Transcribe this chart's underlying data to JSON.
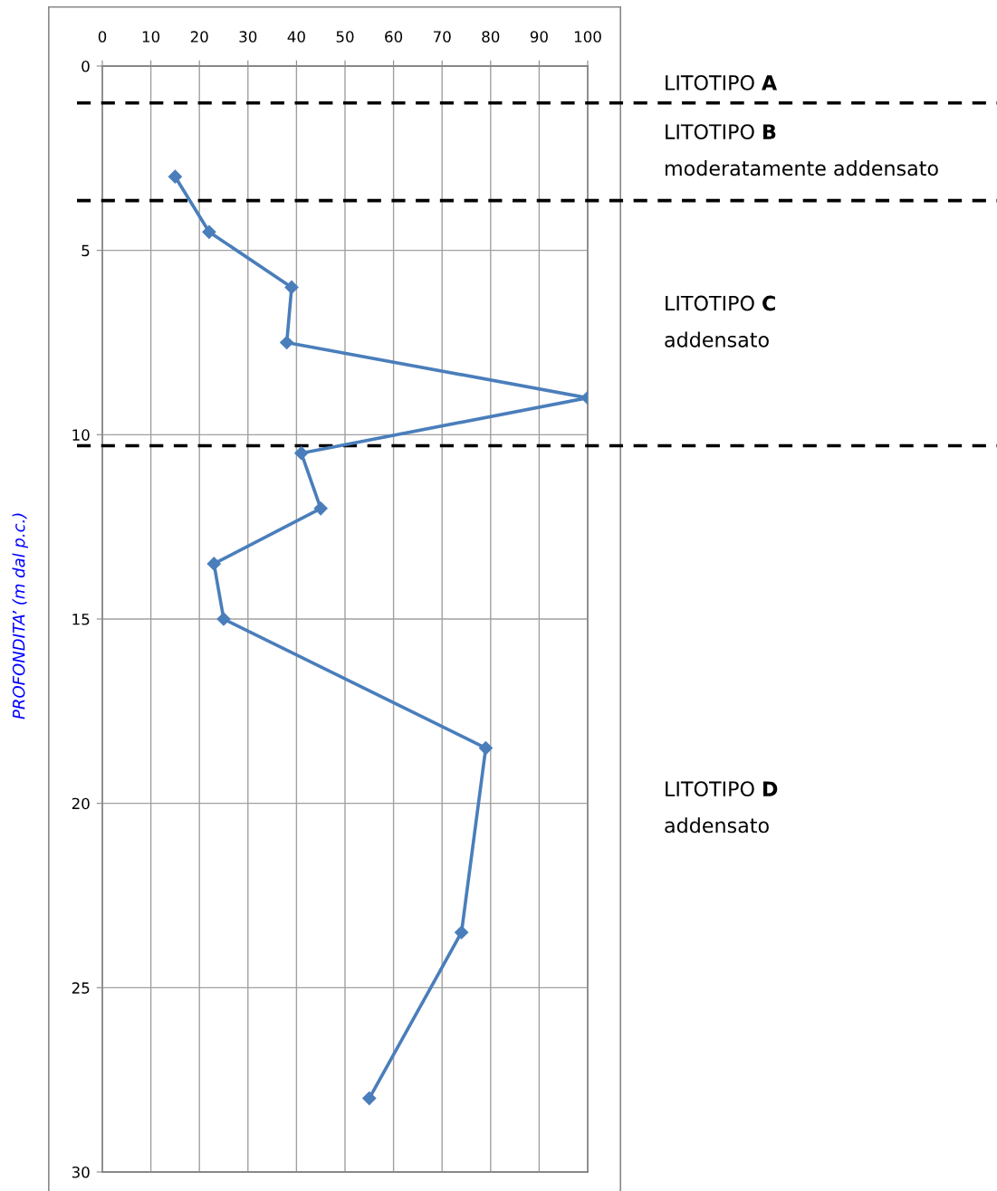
{
  "chart_data": {
    "type": "line",
    "ylabel": "PROFONDITA’ (m dal p.c.)",
    "series": [
      {
        "color": "#4a7ebb",
        "x": [
          15,
          22,
          39,
          38,
          100,
          41,
          45,
          23,
          25,
          79,
          74,
          55
        ],
        "values": [
          3,
          4.5,
          6,
          7.5,
          9,
          10.5,
          12,
          13.5,
          15,
          18.5,
          23.5,
          28
        ]
      }
    ],
    "xlim": [
      0,
      100
    ],
    "xticks": [
      0,
      10,
      20,
      30,
      40,
      50,
      60,
      70,
      80,
      90,
      100
    ],
    "ylim": [
      30,
      0
    ],
    "yticks": [
      0,
      5,
      10,
      15,
      20,
      25,
      30
    ],
    "grid": true,
    "marker": "diamond",
    "line_style": "solid",
    "ref_lines": [
      {
        "axis": "y",
        "value": 1,
        "color": "#000000",
        "line_style": "dashed"
      },
      {
        "axis": "y",
        "value": 3.65,
        "color": "#000000",
        "line_style": "dashed"
      },
      {
        "axis": "y",
        "value": 10.3,
        "color": "#000000",
        "line_style": "dashed"
      }
    ],
    "annotations": [
      "LITOTIPO A",
      "LITOTIPO B\nmoderatamente addensato",
      "LITOTIPO C\naddensato",
      "LITOTIPO D\naddensato"
    ]
  }
}
